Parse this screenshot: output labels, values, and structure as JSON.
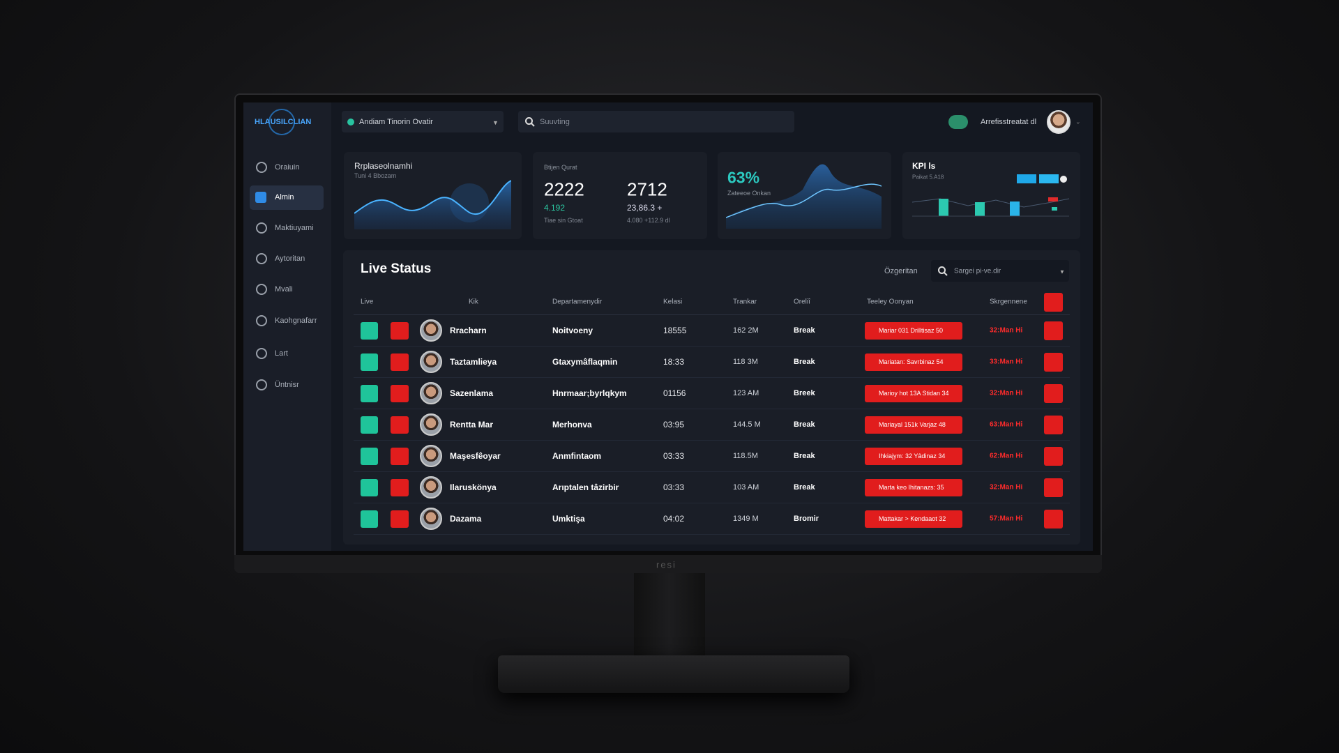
{
  "header": {
    "logo": "HLAUSILCLIAN",
    "workspace": "Andiam Tinorin Ovatir",
    "search_placeholder": "Suuvting",
    "user_name": "Arrefisstreatat dl"
  },
  "nav": [
    "Oraiuin",
    "Almin",
    "Maktiuyami",
    "Aytoritan",
    "Mvali",
    "Kaohgnafarr",
    "Lart",
    "Üntnisr"
  ],
  "cards": {
    "trend": {
      "title": "Rrplaseolnamhi",
      "subtitle": "Tuni 4 Bbozam"
    },
    "stats": {
      "label": "Btijen Qurat",
      "primary": "2222",
      "primary_delta": "4.192",
      "primary_note": "Tiae sin Gtoat",
      "secondary": "2712",
      "secondary_delta": "23,86.3 +",
      "secondary_note": "4.080 +112.9 dl"
    },
    "rate": {
      "value": "63%",
      "label": "Zateeoe Onkan"
    },
    "kpi": {
      "title": "KPI ls",
      "subtitle": "Paikat 5.A18"
    }
  },
  "live_status": {
    "title": "Live Status",
    "filter_label": "Özgeritan",
    "search_placeholder": "Sargei pi-ve.dir",
    "columns": [
      "Live",
      "Kik",
      "Departamenydir",
      "Kelasi",
      "Trankar",
      "Oreliî",
      "Teeley Oonyan",
      "Skrgennene"
    ],
    "rows": [
      [
        "Rracharn",
        "Noitvoeny",
        "18555",
        "162 2M",
        "Break",
        "Mariar 031 Drilltisaz 50",
        "32:Man Hi"
      ],
      [
        "Taztamlieya",
        "Gtaxymâflaqmin",
        "18:33",
        "118 3M",
        "Break",
        "Mariatan: Savrbinaz 54",
        "33:Man Hi"
      ],
      [
        "Sazenlama",
        "Hnrmaar;byrlqkym",
        "01156",
        "123 AM",
        "Breek",
        "Marioy hot 13A Stidan 34",
        "32:Man Hi"
      ],
      [
        "Rentta Mar",
        "Merhonva",
        "03:95",
        "144.5 M",
        "Break",
        "Mariayal 151k Varjaz 48",
        "63:Man Hi"
      ],
      [
        "Maşesfêoyar",
        "Anmfintaom",
        "03:33",
        "118.5M",
        "Break",
        "Ihkiajym: 32 Yâdinaz 34",
        "62:Man Hi"
      ],
      [
        "Ilaruskönya",
        "Arıptalen tâzirbir",
        "03:33",
        "103 AM",
        "Break",
        "Marta keo Ihitanazs: 35",
        "32:Man Hi"
      ],
      [
        "Dazama",
        "Umktişa",
        "04:02",
        "1349 M",
        "Bromir",
        "Mattakar > Kendaaot 32",
        "57:Man Hi"
      ]
    ]
  },
  "monitor_brand": "resi"
}
